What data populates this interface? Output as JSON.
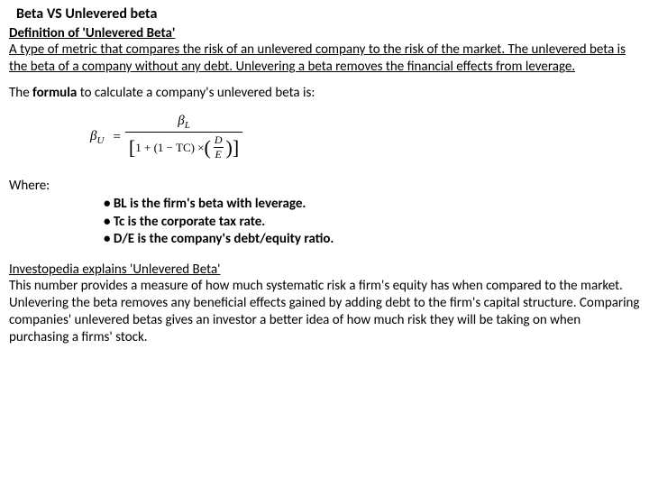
{
  "title": "Beta VS Unlevered beta",
  "definition": {
    "heading": "Definition of 'Unlevered Beta'",
    "text": " A type of metric that compares the risk of an unlevered company to the risk of the market.  The unlevered beta is the beta of a company without any debt. Unlevering a beta removes the financial effects from leverage."
  },
  "formulaIntro": {
    "prefix": "The ",
    "bold": "formula",
    "suffix": " to calculate a company's unlevered beta is:"
  },
  "formula": {
    "betaU": "β",
    "betaUSub": "U",
    "equals": "=",
    "numBeta": "β",
    "numSub": "L",
    "denomPart1": "1 + (1 − T",
    "denomTcSub": "C",
    "denomPart2": ") × ",
    "fracNum": "D",
    "fracDenom": "E"
  },
  "whereLabel": "Where:",
  "bullets": [
    "BL is the firm's beta with leverage.",
    "Tc is the corporate tax rate.",
    "D/E is the company's debt/equity ratio."
  ],
  "explain": {
    "heading": "Investopedia explains 'Unlevered Beta'",
    "text": " This number provides a measure of how much systematic risk a firm's equity has when compared to the market. Unlevering the beta removes any beneficial effects gained by adding debt to the firm's capital structure. Comparing companies' unlevered betas gives an investor a better idea of how much risk they will be taking on when purchasing a firms' stock."
  }
}
